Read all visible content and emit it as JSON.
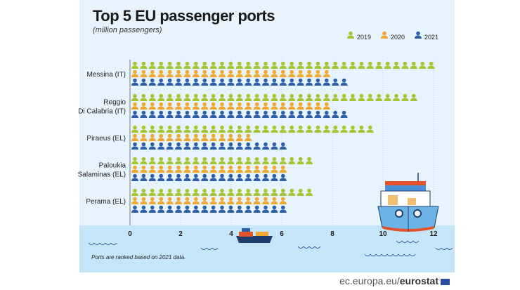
{
  "chart_data": {
    "type": "bar",
    "title": "Top 5 EU passenger ports",
    "subtitle": "(million passengers)",
    "categories": [
      "Messina (IT)",
      "Reggio Di Calabria (IT)",
      "Piraeus (EL)",
      "Paloukia Salaminas (EL)",
      "Perama (EL)"
    ],
    "category_lines": [
      [
        "Messina (IT)"
      ],
      [
        "Reggio",
        "Di Calabria (IT)"
      ],
      [
        "Piraeus (EL)"
      ],
      [
        "Paloukia",
        "Salaminas (EL)"
      ],
      [
        "Perama (EL)"
      ]
    ],
    "series": [
      {
        "name": "2019",
        "color": "#a5c531",
        "values": [
          11.7,
          11.1,
          9.4,
          6.9,
          6.9
        ]
      },
      {
        "name": "2020",
        "color": "#f0a830",
        "values": [
          7.6,
          7.6,
          4.5,
          5.9,
          5.9
        ]
      },
      {
        "name": "2021",
        "color": "#2e5fa8",
        "values": [
          8.3,
          8.3,
          5.9,
          5.9,
          5.9
        ]
      }
    ],
    "orientation": "horizontal",
    "style": "pictogram (person icons)",
    "xlim": [
      0,
      12
    ],
    "xticks": [
      0,
      2,
      4,
      6,
      8,
      10,
      12
    ],
    "grid": "vertical dotted",
    "legend": "top-right"
  },
  "note": "Ports are ranked based on 2021 data.",
  "footer": {
    "domain": "ec.europa.eu/",
    "brand": "eurostat"
  }
}
